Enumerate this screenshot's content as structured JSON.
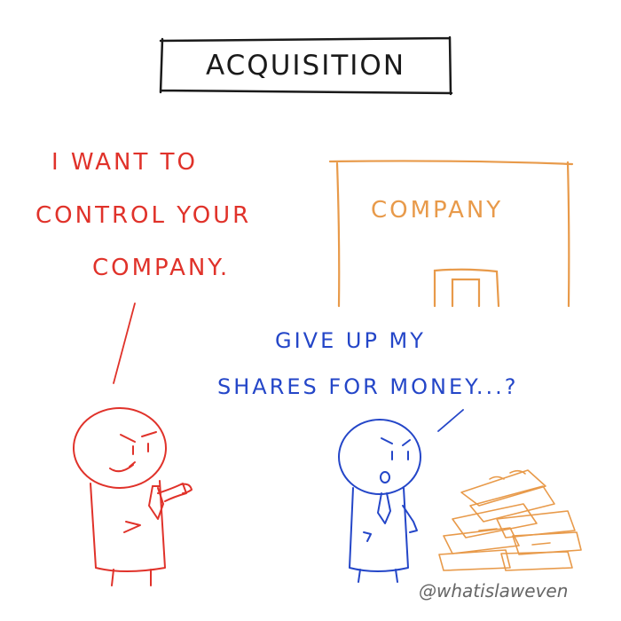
{
  "title": "ACQUISITION",
  "acquirer_speech": {
    "lines": [
      "I WANT TO",
      "CONTROL YOUR",
      "COMPANY."
    ]
  },
  "building": {
    "label": "COMPANY"
  },
  "shareholder_speech": {
    "lines": [
      "GIVE UP MY",
      "SHARES FOR MONEY...?"
    ]
  },
  "credit": "@whatislaweven",
  "colors": {
    "acquirer": "#e0322a",
    "shareholder": "#2446c8",
    "building": "#e89a4a",
    "ink": "#1a1a1a"
  }
}
